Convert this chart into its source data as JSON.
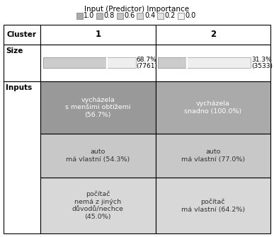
{
  "title": "Input (Predictor) Importance",
  "legend_items": [
    {
      "label": "1.0",
      "color": "#aaaaaa"
    },
    {
      "label": "0.8",
      "color": "#b8b8b8"
    },
    {
      "label": "0.6",
      "color": "#c4c4c4"
    },
    {
      "label": "0.4",
      "color": "#d4d4d4"
    },
    {
      "label": "0.2",
      "color": "#e4e4e4"
    },
    {
      "label": "0.0",
      "color": "#f2f2f2"
    }
  ],
  "col_headers": [
    "Cluster",
    "1",
    "2"
  ],
  "size_row": {
    "cluster1": {
      "pct": "68.7%",
      "n": "(7761)",
      "bar_fill": 0.687
    },
    "cluster2": {
      "pct": "31.3%",
      "n": "(3533)",
      "bar_fill": 0.313
    }
  },
  "input_rows": [
    {
      "cluster1": {
        "text": "vycházela\ns menšimi obtížemi\n(56.7%)",
        "bg": "#999999",
        "fg": "#ffffff"
      },
      "cluster2": {
        "text": "vycházela\nsnadno (100.0%)",
        "bg": "#aaaaaa",
        "fg": "#ffffff"
      }
    },
    {
      "cluster1": {
        "text": "auto\nmá vlastní (54.3%)",
        "bg": "#c8c8c8",
        "fg": "#333333"
      },
      "cluster2": {
        "text": "auto\nmá vlastní (77.0%)",
        "bg": "#c8c8c8",
        "fg": "#333333"
      }
    },
    {
      "cluster1": {
        "text": "počítač\nnemá z jiných\ndůvodů/nechce\n(45.0%)",
        "bg": "#d8d8d8",
        "fg": "#333333"
      },
      "cluster2": {
        "text": "počítač\nmá vlastní (64.2%)",
        "bg": "#d8d8d8",
        "fg": "#333333"
      }
    }
  ],
  "bg_color": "#ffffff"
}
